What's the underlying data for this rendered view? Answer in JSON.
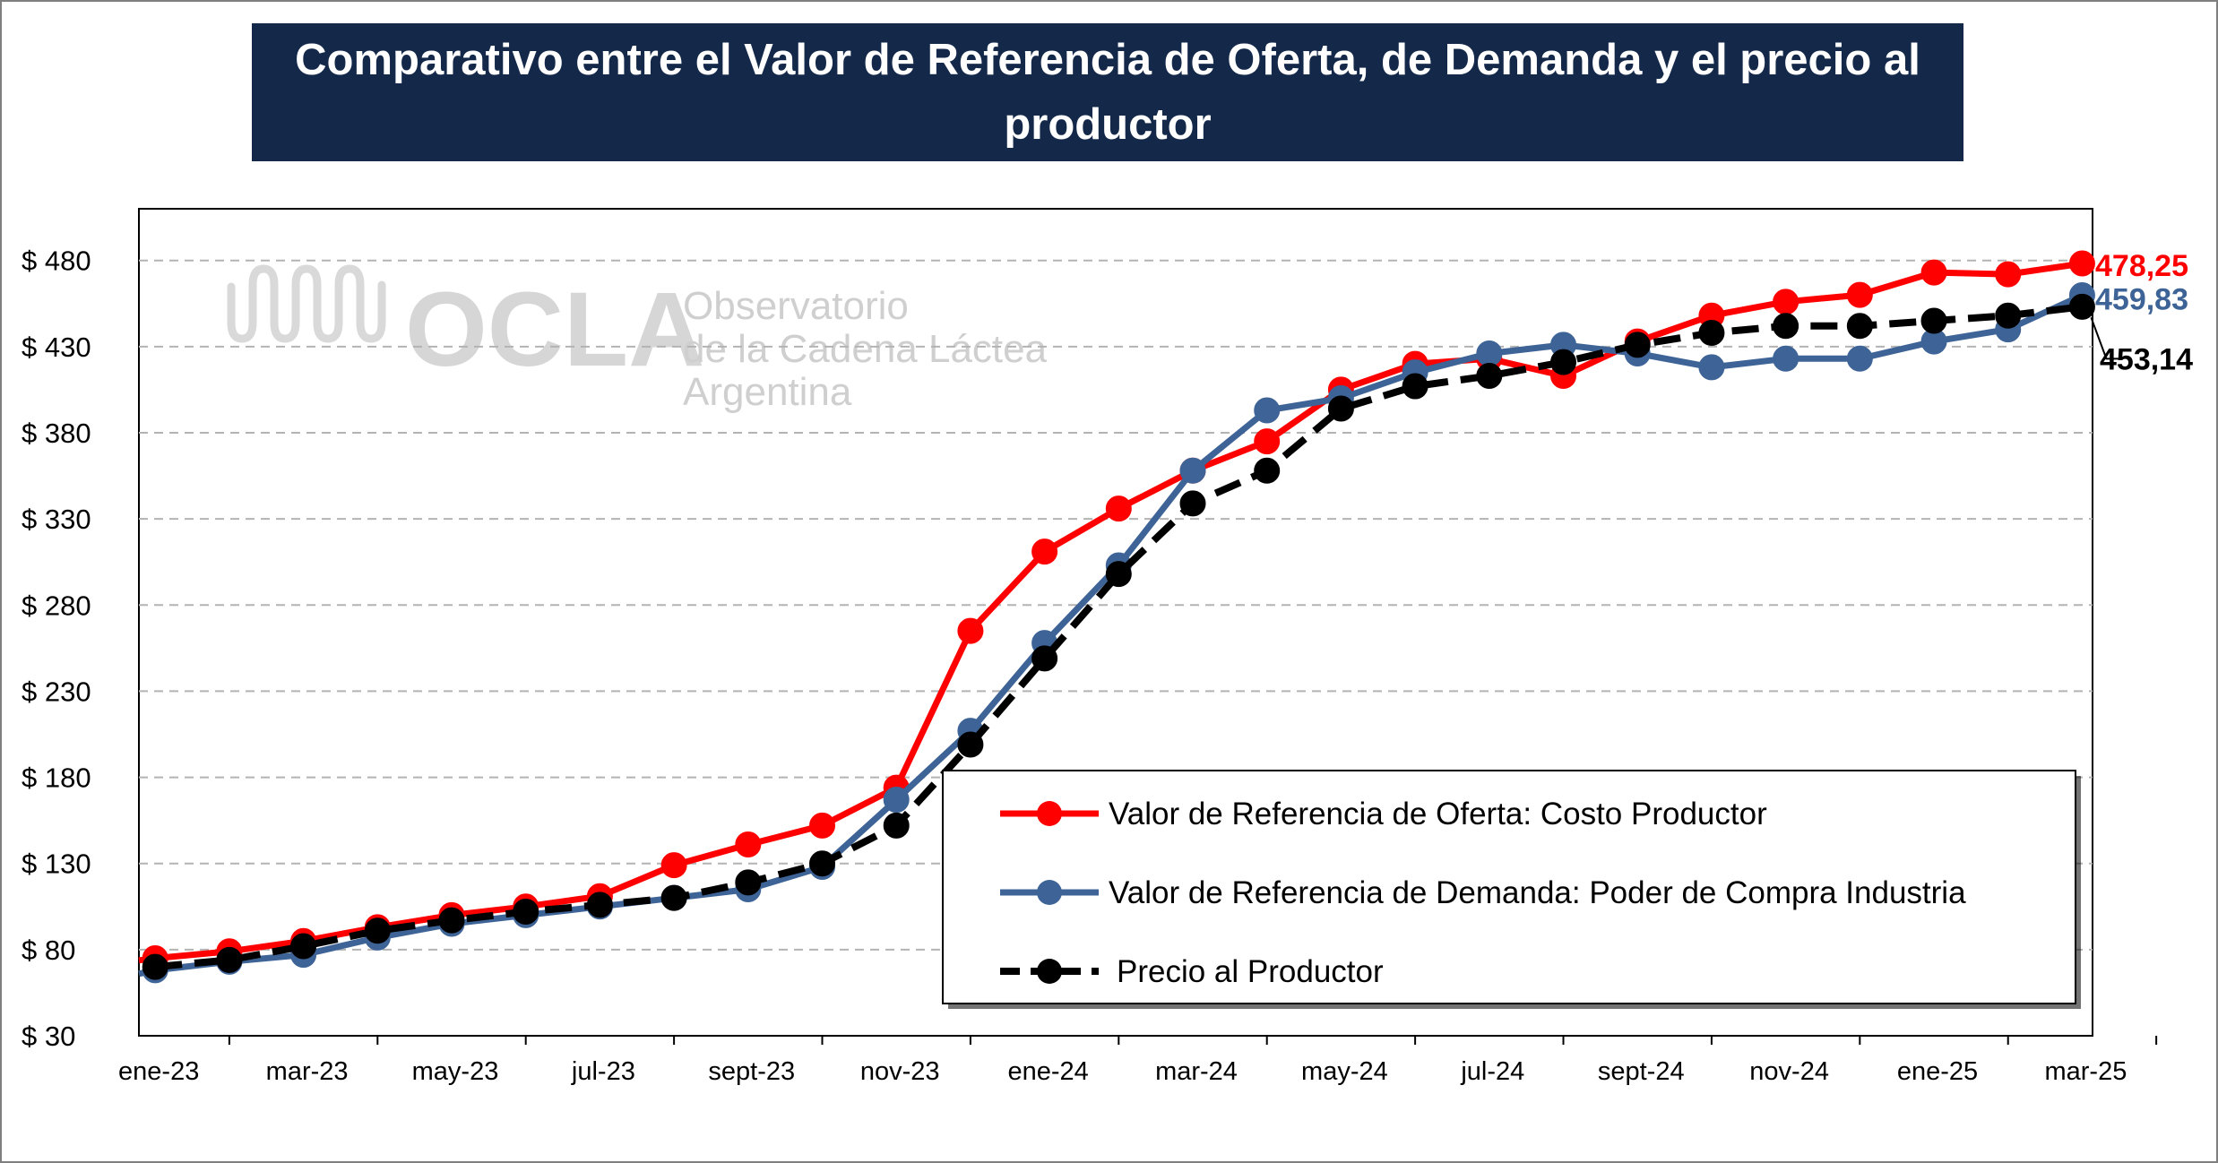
{
  "title": "Comparativo entre el Valor de Referencia de Oferta, de Demanda y el precio al productor",
  "watermark": {
    "logo_text": "OCLA",
    "line1": "Observatorio",
    "line2": "de la Cadena Láctea",
    "line3": "Argentina"
  },
  "colors": {
    "oferta": "#ff0000",
    "demanda": "#3e6497",
    "precio": "#000000",
    "title_bg": "#14284a"
  },
  "chart_data": {
    "type": "line",
    "title": "Comparativo entre el Valor de Referencia de Oferta, de Demanda y el precio al productor",
    "xlabel": "",
    "ylabel": "",
    "ylim": [
      30,
      510
    ],
    "y_ticks": [
      30,
      80,
      130,
      180,
      230,
      280,
      330,
      380,
      430,
      480
    ],
    "y_tick_labels": [
      "$ 30",
      "$ 80",
      "$ 130",
      "$ 180",
      "$ 230",
      "$ 280",
      "$ 330",
      "$ 380",
      "$ 430",
      "$ 480"
    ],
    "x": [
      "ene-23",
      "feb-23",
      "mar-23",
      "abr-23",
      "may-23",
      "jun-23",
      "jul-23",
      "ago-23",
      "sept-23",
      "oct-23",
      "nov-23",
      "dic-23",
      "ene-24",
      "feb-24",
      "mar-24",
      "abr-24",
      "may-24",
      "jun-24",
      "jul-24",
      "ago-24",
      "sept-24",
      "oct-24",
      "nov-24",
      "dic-24",
      "ene-25",
      "feb-25",
      "mar-25"
    ],
    "x_tick_labels": [
      "ene-23",
      "mar-23",
      "may-23",
      "jul-23",
      "sept-23",
      "nov-23",
      "ene-24",
      "mar-24",
      "may-24",
      "jul-24",
      "sept-24",
      "nov-24",
      "ene-25",
      "mar-25"
    ],
    "grid": true,
    "legend_position": "bottom-right",
    "series": [
      {
        "name": "Valor de Referencia de Oferta: Costo Productor",
        "color": "#ff0000",
        "style": "solid",
        "values": [
          75,
          79,
          85,
          93,
          100,
          105,
          111,
          129,
          141,
          152,
          174,
          265,
          311,
          336,
          358,
          375,
          405,
          420,
          423,
          413,
          433,
          448,
          456,
          460,
          473,
          472,
          478.25
        ],
        "end_label": "478,25"
      },
      {
        "name": "Valor de Referencia de Demanda: Poder de Compra Industria",
        "color": "#3e6497",
        "style": "solid",
        "values": [
          68,
          73,
          77,
          87,
          95,
          100,
          105,
          110,
          115,
          128,
          167,
          207,
          258,
          303,
          358,
          393,
          400,
          415,
          426,
          431,
          426,
          418,
          423,
          423,
          433,
          440,
          459.83
        ],
        "end_label": "459,83"
      },
      {
        "name": "Precio al Productor",
        "color": "#000000",
        "style": "dashed",
        "values": [
          70,
          74,
          82,
          91,
          97,
          102,
          106,
          110,
          119,
          130,
          152,
          199,
          249,
          298,
          339,
          358,
          394,
          407,
          413,
          421,
          431,
          438,
          442,
          442,
          445,
          448,
          453.14
        ],
        "end_label": "453,14"
      }
    ]
  }
}
